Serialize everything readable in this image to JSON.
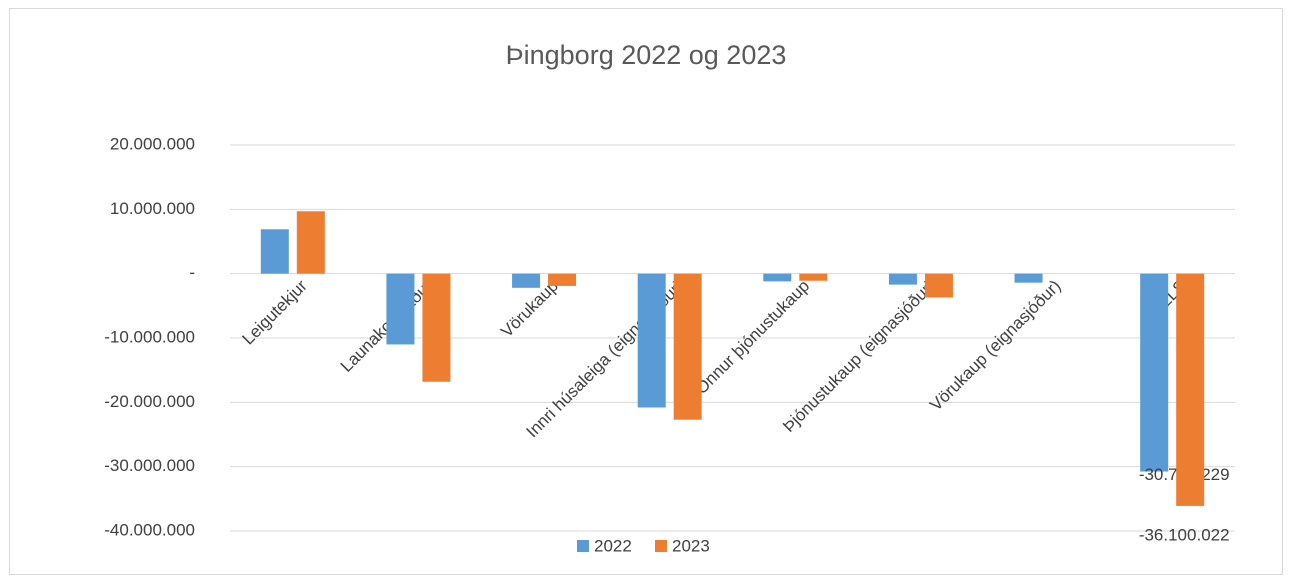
{
  "chart_data": {
    "type": "bar",
    "title": "Þingborg 2022 og 2023",
    "categories": [
      "Leigutekjur",
      "Launakostnaður",
      "Vörukaup",
      "Innri húsaleiga (eignasjóður)",
      "Önnur þjónustukaup",
      "Þjónustukaup (eignasjóður)",
      "Vörukaup (eignasjóður)",
      "ALLS"
    ],
    "series": [
      {
        "name": "2022",
        "color": "#5b9bd5",
        "values": [
          6900000,
          -11000000,
          -2200000,
          -20800000,
          -1200000,
          -1700000,
          -1400000,
          -30757229
        ],
        "value_labels": [
          null,
          null,
          null,
          null,
          null,
          null,
          null,
          "-30.757.229"
        ]
      },
      {
        "name": "2023",
        "color": "#ed7d31",
        "values": [
          9700000,
          -16800000,
          -1900000,
          -22700000,
          -1100000,
          -3700000,
          null,
          -36100022
        ],
        "value_labels": [
          null,
          null,
          null,
          null,
          null,
          null,
          null,
          "-36.100.022"
        ]
      }
    ],
    "ylim": [
      -40000000,
      20000000
    ],
    "yticks": [
      {
        "value": -40000000,
        "label": "-40.000.000"
      },
      {
        "value": -30000000,
        "label": "-30.000.000"
      },
      {
        "value": -20000000,
        "label": "-20.000.000"
      },
      {
        "value": -10000000,
        "label": "-10.000.000"
      },
      {
        "value": 0,
        "label": "-"
      },
      {
        "value": 10000000,
        "label": "10.000.000"
      },
      {
        "value": 20000000,
        "label": "20.000.000"
      }
    ],
    "grid": true,
    "legend": "bottom"
  }
}
